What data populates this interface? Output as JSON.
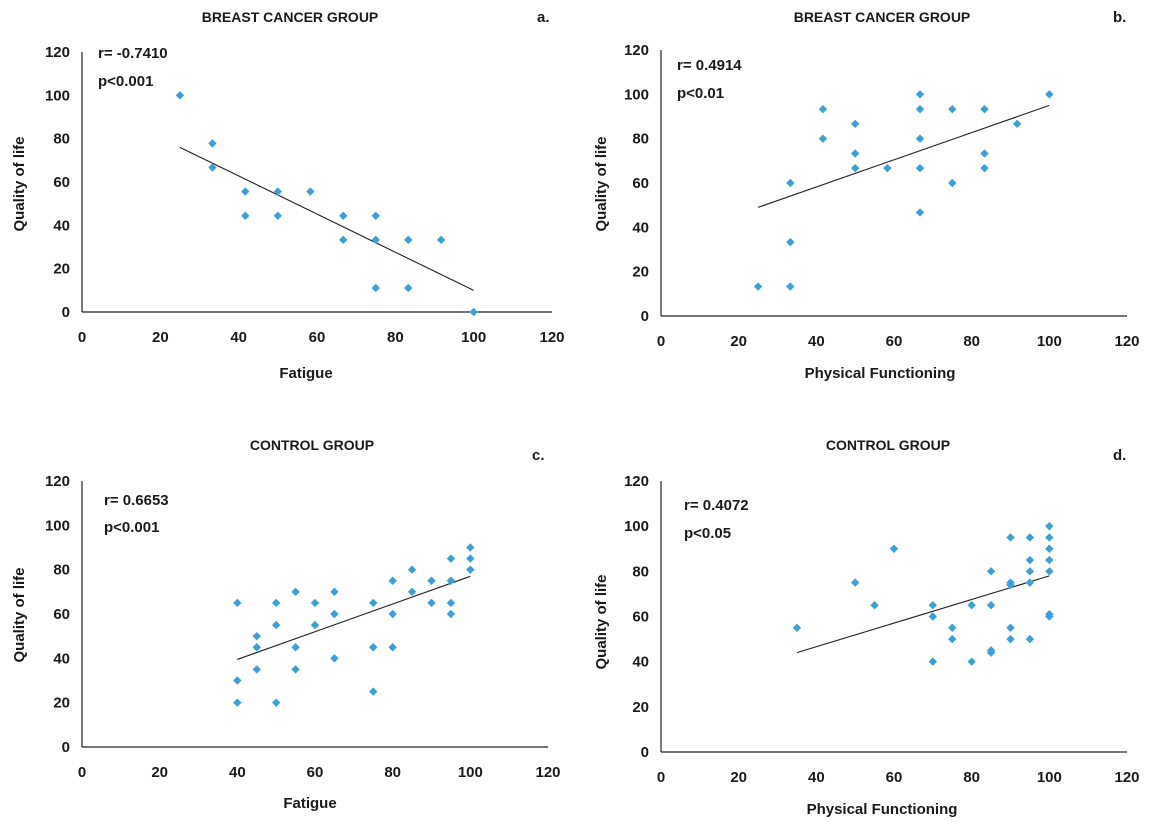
{
  "chart_data": [
    {
      "type": "scatter",
      "title": "BREAST CANCER GROUP",
      "panel": "a.",
      "stats": [
        "r= -0.7410",
        "p<0.001"
      ],
      "xlabel": "Fatigue",
      "ylabel": "Quality of life",
      "xlim": [
        0,
        120
      ],
      "ylim": [
        0,
        120
      ],
      "xticks": [
        0,
        20,
        40,
        60,
        80,
        100,
        120
      ],
      "yticks": [
        0,
        20,
        40,
        60,
        80,
        100,
        120
      ],
      "trendline": [
        [
          25,
          76
        ],
        [
          100,
          10
        ]
      ],
      "points": [
        [
          25,
          100
        ],
        [
          33.3,
          77.8
        ],
        [
          33.3,
          66.7
        ],
        [
          41.7,
          55.6
        ],
        [
          41.7,
          44.4
        ],
        [
          50,
          55.6
        ],
        [
          50,
          44.4
        ],
        [
          58.3,
          55.6
        ],
        [
          66.7,
          44.4
        ],
        [
          66.7,
          33.3
        ],
        [
          75,
          44.4
        ],
        [
          75,
          33.3
        ],
        [
          75,
          11.1
        ],
        [
          83.3,
          33.3
        ],
        [
          83.3,
          11.1
        ],
        [
          91.7,
          33.3
        ],
        [
          100,
          0
        ]
      ]
    },
    {
      "type": "scatter",
      "title": "BREAST CANCER GROUP",
      "panel": "b.",
      "stats": [
        "r= 0.4914",
        "p<0.01"
      ],
      "xlabel": "Physical Functioning",
      "ylabel": "Quality  of life",
      "xlim": [
        0,
        120
      ],
      "ylim": [
        0,
        120
      ],
      "xticks": [
        0,
        20,
        40,
        60,
        80,
        100,
        120
      ],
      "yticks": [
        0,
        20,
        40,
        60,
        80,
        100,
        120
      ],
      "trendline": [
        [
          25,
          49
        ],
        [
          100,
          95
        ]
      ],
      "points": [
        [
          25,
          13.3
        ],
        [
          33.3,
          13.3
        ],
        [
          33.3,
          33.3
        ],
        [
          33.3,
          60
        ],
        [
          41.7,
          93.3
        ],
        [
          41.7,
          80
        ],
        [
          50,
          86.7
        ],
        [
          50,
          73.3
        ],
        [
          50,
          66.7
        ],
        [
          58.3,
          66.7
        ],
        [
          66.7,
          100
        ],
        [
          66.7,
          93.3
        ],
        [
          66.7,
          80
        ],
        [
          66.7,
          66.7
        ],
        [
          66.7,
          46.7
        ],
        [
          75,
          93.3
        ],
        [
          75,
          60
        ],
        [
          83.3,
          93.3
        ],
        [
          83.3,
          73.3
        ],
        [
          83.3,
          66.7
        ],
        [
          91.7,
          86.7
        ],
        [
          100,
          100
        ]
      ]
    },
    {
      "type": "scatter",
      "title": "CONTROL GROUP",
      "panel": "c.",
      "stats": [
        "r= 0.6653",
        "p<0.001"
      ],
      "xlabel": "Fatigue",
      "ylabel": "Quality of life",
      "xlim": [
        0,
        120
      ],
      "ylim": [
        0,
        120
      ],
      "xticks": [
        0,
        20,
        40,
        60,
        80,
        100,
        120
      ],
      "yticks": [
        0,
        20,
        40,
        60,
        80,
        100,
        120
      ],
      "trendline": [
        [
          40,
          39.5
        ],
        [
          100,
          77
        ]
      ],
      "points": [
        [
          40,
          65
        ],
        [
          40,
          30
        ],
        [
          40,
          20
        ],
        [
          45,
          50
        ],
        [
          45,
          45
        ],
        [
          45,
          35
        ],
        [
          50,
          65
        ],
        [
          50,
          55
        ],
        [
          50,
          20
        ],
        [
          55,
          70
        ],
        [
          55,
          45
        ],
        [
          55,
          35
        ],
        [
          60,
          65
        ],
        [
          60,
          55
        ],
        [
          65,
          70
        ],
        [
          65,
          60
        ],
        [
          65,
          40
        ],
        [
          75,
          65
        ],
        [
          75,
          45
        ],
        [
          75,
          25
        ],
        [
          80,
          75
        ],
        [
          80,
          60
        ],
        [
          80,
          45
        ],
        [
          85,
          80
        ],
        [
          85,
          70
        ],
        [
          90,
          75
        ],
        [
          90,
          65
        ],
        [
          95,
          85
        ],
        [
          95,
          75
        ],
        [
          95,
          65
        ],
        [
          95,
          60
        ],
        [
          100,
          90
        ],
        [
          100,
          85
        ],
        [
          100,
          80
        ]
      ]
    },
    {
      "type": "scatter",
      "title": "CONTROL GROUP",
      "panel": "d.",
      "stats": [
        "r= 0.4072",
        "p<0.05"
      ],
      "xlabel": "Physical Functioning",
      "ylabel": "Quality of life",
      "xlim": [
        0,
        120
      ],
      "ylim": [
        0,
        120
      ],
      "xticks": [
        0,
        20,
        40,
        60,
        80,
        100,
        120
      ],
      "yticks": [
        0,
        20,
        40,
        60,
        80,
        100,
        120
      ],
      "trendline": [
        [
          35,
          44
        ],
        [
          100,
          78
        ]
      ],
      "points": [
        [
          35,
          55
        ],
        [
          50,
          75
        ],
        [
          55,
          65
        ],
        [
          60,
          90
        ],
        [
          70,
          65
        ],
        [
          70,
          60
        ],
        [
          70,
          40
        ],
        [
          75,
          55
        ],
        [
          75,
          50
        ],
        [
          80,
          65
        ],
        [
          80,
          40
        ],
        [
          85,
          80
        ],
        [
          85,
          65
        ],
        [
          85,
          45
        ],
        [
          85,
          44
        ],
        [
          90,
          95
        ],
        [
          90,
          75
        ],
        [
          90,
          74
        ],
        [
          90,
          55
        ],
        [
          90,
          50
        ],
        [
          95,
          95
        ],
        [
          95,
          85
        ],
        [
          95,
          80
        ],
        [
          95,
          75
        ],
        [
          95,
          50
        ],
        [
          100,
          100
        ],
        [
          100,
          95
        ],
        [
          100,
          90
        ],
        [
          100,
          85
        ],
        [
          100,
          80
        ],
        [
          100,
          61
        ],
        [
          100,
          60
        ]
      ]
    }
  ]
}
